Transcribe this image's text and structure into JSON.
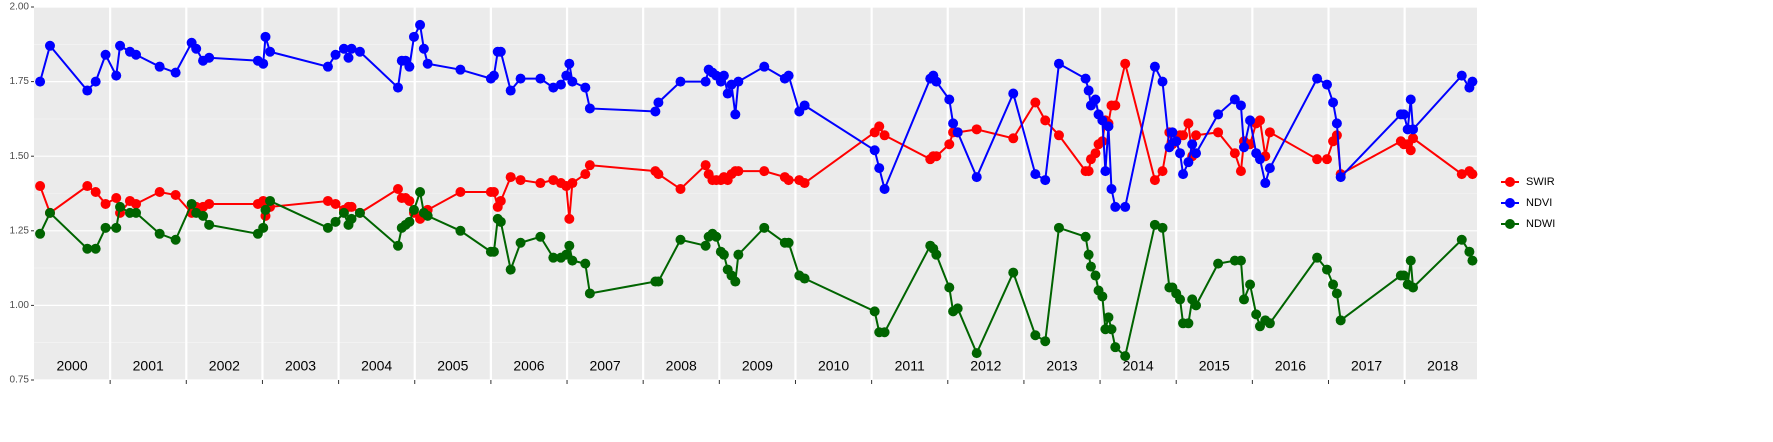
{
  "chart_data": {
    "type": "line",
    "x": [
      2000.08,
      2000.21,
      2000.7,
      2000.81,
      2000.94,
      2001.08,
      2001.13,
      2001.26,
      2001.34,
      2001.65,
      2001.86,
      2002.07,
      2002.13,
      2002.22,
      2002.3,
      2002.94,
      2003.01,
      2003.04,
      2003.1,
      2003.86,
      2003.96,
      2004.07,
      2004.13,
      2004.17,
      2004.28,
      2004.78,
      2004.83,
      2004.88,
      2004.93,
      2004.99,
      2005.07,
      2005.12,
      2005.17,
      2005.6,
      2006.0,
      2006.04,
      2006.09,
      2006.13,
      2006.26,
      2006.39,
      2006.65,
      2006.82,
      2006.92,
      2006.99,
      2007.03,
      2007.07,
      2007.24,
      2007.3,
      2008.16,
      2008.2,
      2008.49,
      2008.82,
      2008.86,
      2008.91,
      2008.96,
      2009.02,
      2009.06,
      2009.11,
      2009.16,
      2009.21,
      2009.25,
      2009.59,
      2009.86,
      2009.91,
      2010.05,
      2010.12,
      2011.04,
      2011.1,
      2011.17,
      2011.77,
      2011.81,
      2011.85,
      2012.02,
      2012.07,
      2012.13,
      2012.38,
      2012.86,
      2013.15,
      2013.28,
      2013.46,
      2013.81,
      2013.85,
      2013.88,
      2013.94,
      2013.98,
      2014.03,
      2014.07,
      2014.11,
      2014.15,
      2014.2,
      2014.33,
      2014.72,
      2014.82,
      2014.91,
      2014.95,
      2015.0,
      2015.05,
      2015.09,
      2015.16,
      2015.21,
      2015.26,
      2015.55,
      2015.77,
      2015.85,
      2015.89,
      2015.97,
      2016.05,
      2016.1,
      2016.17,
      2016.23,
      2016.85,
      2016.98,
      2017.06,
      2017.11,
      2017.16,
      2017.95,
      2017.99,
      2018.04,
      2018.08,
      2018.11,
      2018.75,
      2018.85,
      2018.89
    ],
    "series": [
      {
        "name": "SWIR",
        "color": "#ff0000",
        "values": [
          1.4,
          1.31,
          1.4,
          1.38,
          1.34,
          1.36,
          1.31,
          1.35,
          1.34,
          1.38,
          1.37,
          1.31,
          1.33,
          1.33,
          1.34,
          1.34,
          1.35,
          1.3,
          1.33,
          1.35,
          1.34,
          1.32,
          1.33,
          1.33,
          1.31,
          1.39,
          1.36,
          1.36,
          1.35,
          1.31,
          1.29,
          1.31,
          1.32,
          1.38,
          1.38,
          1.38,
          1.33,
          1.35,
          1.43,
          1.42,
          1.41,
          1.42,
          1.41,
          1.4,
          1.29,
          1.41,
          1.44,
          1.47,
          1.45,
          1.44,
          1.39,
          1.47,
          1.44,
          1.42,
          1.42,
          1.42,
          1.43,
          1.42,
          1.44,
          1.45,
          1.45,
          1.45,
          1.43,
          1.42,
          1.42,
          1.41,
          1.58,
          1.6,
          1.57,
          1.49,
          1.5,
          1.5,
          1.54,
          1.58,
          1.58,
          1.59,
          1.56,
          1.68,
          1.62,
          1.57,
          1.45,
          1.45,
          1.49,
          1.51,
          1.54,
          1.55,
          1.62,
          1.61,
          1.67,
          1.67,
          1.81,
          1.42,
          1.45,
          1.58,
          1.54,
          1.55,
          1.57,
          1.57,
          1.61,
          1.5,
          1.57,
          1.58,
          1.51,
          1.45,
          1.55,
          1.54,
          1.61,
          1.62,
          1.5,
          1.58,
          1.49,
          1.49,
          1.55,
          1.57,
          1.44,
          1.55,
          1.54,
          1.54,
          1.52,
          1.56,
          1.44,
          1.45,
          1.44
        ]
      },
      {
        "name": "NDVI",
        "color": "#0000ff",
        "values": [
          1.75,
          1.87,
          1.72,
          1.75,
          1.84,
          1.77,
          1.87,
          1.85,
          1.84,
          1.8,
          1.78,
          1.88,
          1.86,
          1.82,
          1.83,
          1.82,
          1.81,
          1.9,
          1.85,
          1.8,
          1.84,
          1.86,
          1.83,
          1.86,
          1.85,
          1.73,
          1.82,
          1.82,
          1.8,
          1.9,
          1.94,
          1.86,
          1.81,
          1.79,
          1.76,
          1.77,
          1.85,
          1.85,
          1.72,
          1.76,
          1.76,
          1.73,
          1.74,
          1.77,
          1.81,
          1.75,
          1.73,
          1.66,
          1.65,
          1.68,
          1.75,
          1.75,
          1.79,
          1.78,
          1.77,
          1.75,
          1.77,
          1.71,
          1.74,
          1.64,
          1.75,
          1.8,
          1.76,
          1.77,
          1.65,
          1.67,
          1.52,
          1.46,
          1.39,
          1.76,
          1.77,
          1.75,
          1.69,
          1.61,
          1.58,
          1.43,
          1.71,
          1.44,
          1.42,
          1.81,
          1.76,
          1.72,
          1.67,
          1.69,
          1.64,
          1.62,
          1.45,
          1.6,
          1.39,
          1.33,
          1.33,
          1.8,
          1.75,
          1.53,
          1.58,
          1.55,
          1.51,
          1.44,
          1.48,
          1.54,
          1.51,
          1.64,
          1.69,
          1.67,
          1.53,
          1.62,
          1.51,
          1.49,
          1.41,
          1.46,
          1.76,
          1.74,
          1.68,
          1.61,
          1.43,
          1.64,
          1.64,
          1.59,
          1.69,
          1.59,
          1.77,
          1.73,
          1.75
        ]
      },
      {
        "name": "NDWI",
        "color": "#006400",
        "values": [
          1.24,
          1.31,
          1.19,
          1.19,
          1.26,
          1.26,
          1.33,
          1.31,
          1.31,
          1.24,
          1.22,
          1.34,
          1.31,
          1.3,
          1.27,
          1.24,
          1.26,
          1.32,
          1.35,
          1.26,
          1.28,
          1.31,
          1.27,
          1.29,
          1.31,
          1.2,
          1.26,
          1.27,
          1.28,
          1.32,
          1.38,
          1.31,
          1.3,
          1.25,
          1.18,
          1.18,
          1.29,
          1.28,
          1.12,
          1.21,
          1.23,
          1.16,
          1.16,
          1.17,
          1.2,
          1.15,
          1.14,
          1.04,
          1.08,
          1.08,
          1.22,
          1.2,
          1.23,
          1.24,
          1.23,
          1.18,
          1.17,
          1.12,
          1.1,
          1.08,
          1.17,
          1.26,
          1.21,
          1.21,
          1.1,
          1.09,
          0.98,
          0.91,
          0.91,
          1.2,
          1.19,
          1.17,
          1.06,
          0.98,
          0.99,
          0.84,
          1.11,
          0.9,
          0.88,
          1.26,
          1.23,
          1.17,
          1.13,
          1.1,
          1.05,
          1.03,
          0.92,
          0.96,
          0.92,
          0.86,
          0.83,
          1.27,
          1.26,
          1.06,
          1.06,
          1.04,
          1.02,
          0.94,
          0.94,
          1.02,
          1.0,
          1.14,
          1.15,
          1.15,
          1.02,
          1.07,
          0.97,
          0.93,
          0.95,
          0.94,
          1.16,
          1.12,
          1.07,
          1.04,
          0.95,
          1.1,
          1.1,
          1.07,
          1.15,
          1.06,
          1.22,
          1.18,
          1.15
        ]
      }
    ],
    "xlim": [
      2000,
      2018.95
    ],
    "xticks": [
      2001,
      2002,
      2003,
      2004,
      2005,
      2006,
      2007,
      2008,
      2009,
      2010,
      2011,
      2012,
      2013,
      2014,
      2015,
      2016,
      2017,
      2018
    ],
    "year_labels": [
      2000,
      2001,
      2002,
      2003,
      2004,
      2005,
      2006,
      2007,
      2008,
      2009,
      2010,
      2011,
      2012,
      2013,
      2014,
      2015,
      2016,
      2017,
      2018
    ],
    "ylim": [
      0.75,
      2.0
    ],
    "yticks": [
      {
        "value": 0.75,
        "label": "0.75"
      },
      {
        "value": 1.0,
        "label": "1.00"
      },
      {
        "value": 1.25,
        "label": "1.25"
      },
      {
        "value": 1.5,
        "label": "1.50"
      },
      {
        "value": 1.75,
        "label": "1.75"
      },
      {
        "value": 2.0,
        "label": "2.00"
      }
    ],
    "grid": true,
    "legend": "right"
  }
}
